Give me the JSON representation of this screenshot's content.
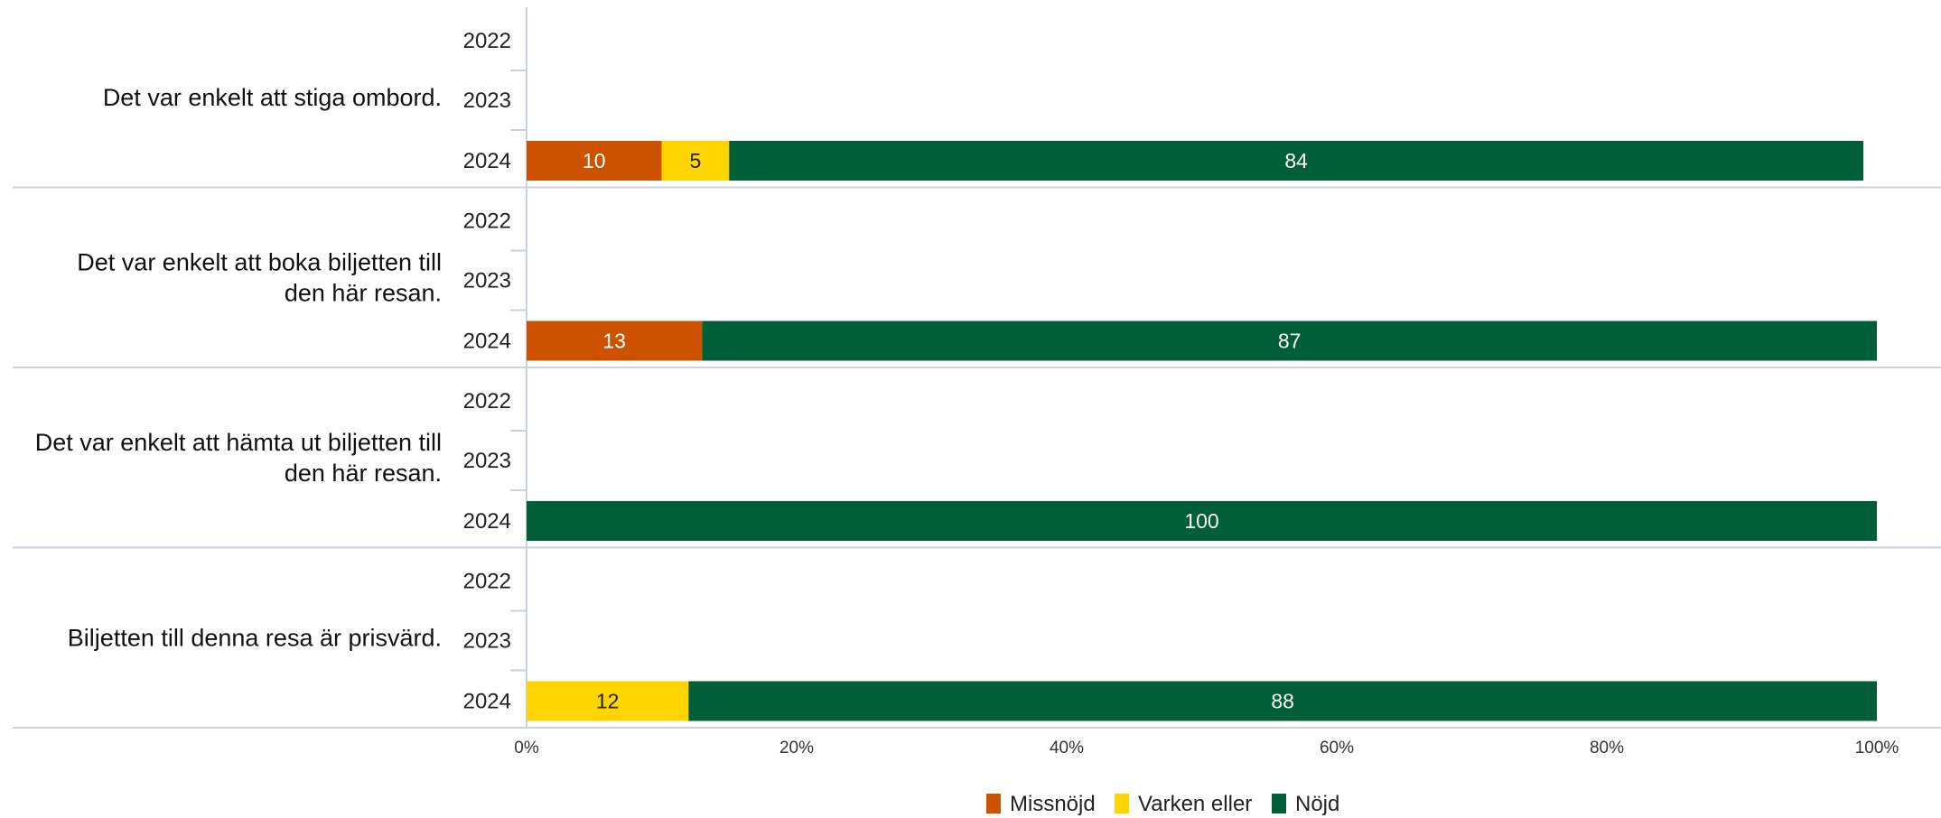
{
  "chart_data": {
    "type": "bar",
    "orientation": "horizontal",
    "stacked": true,
    "title": "",
    "xlabel": "",
    "ylabel": "",
    "xlim": [
      0,
      100
    ],
    "x_ticks": [
      "0%",
      "20%",
      "40%",
      "60%",
      "80%",
      "100%"
    ],
    "years": [
      "2022",
      "2023",
      "2024"
    ],
    "series": [
      {
        "name": "Missnöjd",
        "color": "#CC5200",
        "label_color": "#ffffff"
      },
      {
        "name": "Varken eller",
        "color": "#FFD500",
        "label_color": "#222222"
      },
      {
        "name": "Nöjd",
        "color": "#005E38",
        "label_color": "#ffffff"
      }
    ],
    "groups": [
      {
        "label_lines": [
          "Det var enkelt att stiga ombord."
        ],
        "values": {
          "2022": null,
          "2023": null,
          "2024": [
            10,
            5,
            84
          ]
        }
      },
      {
        "label_lines": [
          "Det var enkelt att boka biljetten till",
          "den här resan."
        ],
        "values": {
          "2022": null,
          "2023": null,
          "2024": [
            13,
            0,
            87
          ]
        }
      },
      {
        "label_lines": [
          "Det var enkelt att hämta ut biljetten till",
          "den här resan."
        ],
        "values": {
          "2022": null,
          "2023": null,
          "2024": [
            0,
            0,
            100
          ]
        }
      },
      {
        "label_lines": [
          "Biljetten till denna resa är prisvärd."
        ],
        "values": {
          "2022": null,
          "2023": null,
          "2024": [
            0,
            12,
            88
          ]
        }
      }
    ],
    "legend_position": "bottom-center",
    "grid": false
  }
}
